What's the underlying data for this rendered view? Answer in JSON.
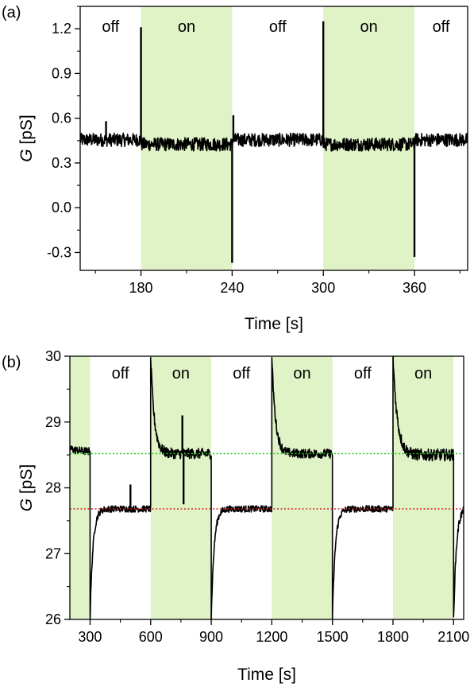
{
  "chart_data": [
    {
      "type": "line",
      "panel_label": "(a)",
      "xlabel": "Time [s]",
      "ylabel_var": "G",
      "ylabel_unit": " [pS]",
      "xlim": [
        140,
        395
      ],
      "ylim": [
        -0.42,
        1.35
      ],
      "xticks": [
        180,
        240,
        300,
        360
      ],
      "xtick_labels": [
        "180",
        "240",
        "300",
        "360"
      ],
      "yticks": [
        -0.3,
        0.0,
        0.3,
        0.6,
        0.9,
        1.2
      ],
      "ytick_labels": [
        "-0.3",
        "0.0",
        "0.3",
        "0.6",
        "0.9",
        "1.2"
      ],
      "shaded_on_color": "#dff3c6",
      "line_color": "#000000",
      "regions": [
        {
          "state": "off",
          "label": "off",
          "x": [
            140,
            180
          ]
        },
        {
          "state": "on",
          "label": "on",
          "x": [
            180,
            240
          ]
        },
        {
          "state": "off",
          "label": "off",
          "x": [
            240,
            300
          ]
        },
        {
          "state": "on",
          "label": "on",
          "x": [
            300,
            360
          ]
        },
        {
          "state": "off",
          "label": "off",
          "x": [
            360,
            395
          ]
        }
      ],
      "series": [
        {
          "segments": [
            {
              "x0": 140,
              "x1": 180,
              "level": 0.455,
              "noise": 0.045
            },
            {
              "x0": 180,
              "x1": 240,
              "level": 0.425,
              "noise": 0.045
            },
            {
              "x0": 240,
              "x1": 300,
              "level": 0.455,
              "noise": 0.045
            },
            {
              "x0": 300,
              "x1": 360,
              "level": 0.425,
              "noise": 0.045
            },
            {
              "x0": 360,
              "x1": 395,
              "level": 0.455,
              "noise": 0.045
            }
          ],
          "spikes": [
            {
              "x": 180,
              "y": 1.21
            },
            {
              "x": 240,
              "y": -0.37
            },
            {
              "x": 240.8,
              "y": 0.62
            },
            {
              "x": 300,
              "y": 1.25
            },
            {
              "x": 360,
              "y": -0.33
            },
            {
              "x": 157,
              "y": 0.58
            }
          ]
        }
      ],
      "reference_lines": []
    },
    {
      "type": "line",
      "panel_label": "(b)",
      "xlabel": "Time [s]",
      "ylabel_var": "G",
      "ylabel_unit": " [pS]",
      "xlim": [
        200,
        2150
      ],
      "ylim": [
        26,
        30
      ],
      "xticks": [
        300,
        600,
        900,
        1200,
        1500,
        1800,
        2100
      ],
      "xtick_labels": [
        "300",
        "600",
        "900",
        "1200",
        "1500",
        "1800",
        "2100"
      ],
      "yticks": [
        26,
        27,
        28,
        29,
        30
      ],
      "ytick_labels": [
        "26",
        "27",
        "28",
        "29",
        "30"
      ],
      "shaded_on_color": "#dff3c6",
      "line_color": "#000000",
      "regions": [
        {
          "state": "on",
          "label": "",
          "x": [
            200,
            300
          ]
        },
        {
          "state": "off",
          "label": "off",
          "x": [
            300,
            600
          ]
        },
        {
          "state": "on",
          "label": "on",
          "x": [
            600,
            900
          ]
        },
        {
          "state": "off",
          "label": "off",
          "x": [
            900,
            1200
          ]
        },
        {
          "state": "on",
          "label": "on",
          "x": [
            1200,
            1500
          ]
        },
        {
          "state": "off",
          "label": "off",
          "x": [
            1500,
            1800
          ]
        },
        {
          "state": "on",
          "label": "on",
          "x": [
            1800,
            2100
          ]
        },
        {
          "state": "off",
          "label": "",
          "x": [
            2100,
            2150
          ]
        }
      ],
      "series": [
        {
          "segments": [
            {
              "x0": 200,
              "x1": 300,
              "level": 28.55,
              "start": 28.6,
              "tau": 40,
              "noise": 0.06
            },
            {
              "x0": 300,
              "x1": 600,
              "level": 27.68,
              "start": 26.0,
              "tau": 14,
              "noise": 0.05
            },
            {
              "x0": 600,
              "x1": 900,
              "level": 28.52,
              "start": 30.0,
              "tau": 18,
              "noise": 0.08
            },
            {
              "x0": 900,
              "x1": 1200,
              "level": 27.68,
              "start": 26.0,
              "tau": 14,
              "noise": 0.05
            },
            {
              "x0": 1200,
              "x1": 1500,
              "level": 28.52,
              "start": 30.0,
              "tau": 18,
              "noise": 0.07
            },
            {
              "x0": 1500,
              "x1": 1800,
              "level": 27.68,
              "start": 26.0,
              "tau": 14,
              "noise": 0.05
            },
            {
              "x0": 1800,
              "x1": 2100,
              "level": 28.5,
              "start": 30.0,
              "tau": 22,
              "noise": 0.09
            },
            {
              "x0": 2100,
              "x1": 2150,
              "level": 27.7,
              "start": 26.0,
              "tau": 14,
              "noise": 0.06
            }
          ],
          "spikes": [
            {
              "x": 757,
              "y": 29.1
            },
            {
              "x": 763,
              "y": 27.75
            },
            {
              "x": 500,
              "y": 28.05
            }
          ]
        }
      ],
      "reference_lines": [
        {
          "y": 28.52,
          "color": "#22cc22",
          "style": "dotted"
        },
        {
          "y": 27.68,
          "color": "#dd2222",
          "style": "dotted"
        }
      ]
    }
  ]
}
